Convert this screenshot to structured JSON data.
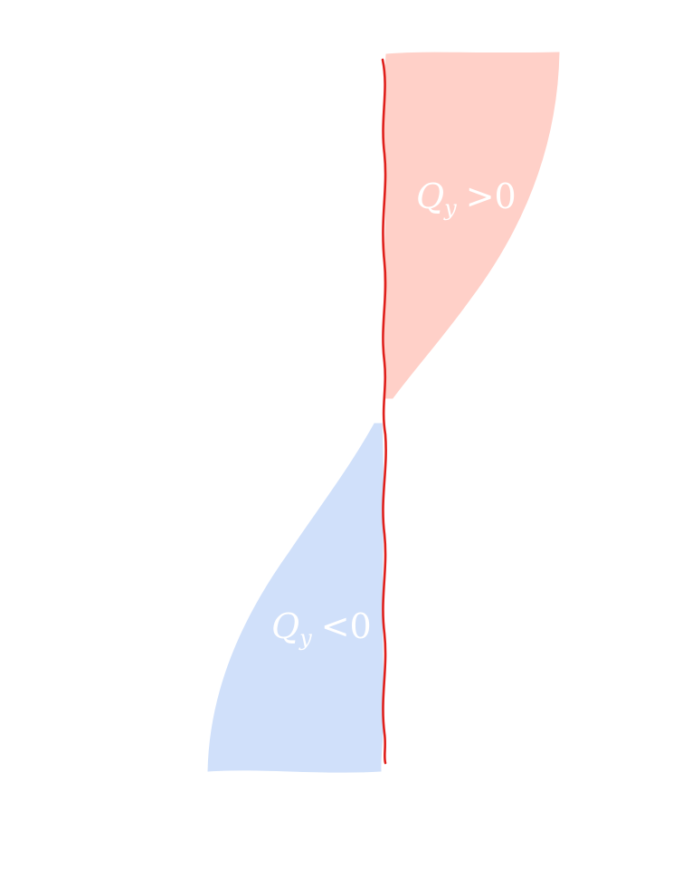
{
  "diagram": {
    "axis_color": "#e0201c",
    "regions": [
      {
        "name": "positive",
        "color": "#ffd0c8",
        "label_var": "Q",
        "label_sub": "y",
        "label_rel": ">0"
      },
      {
        "name": "negative",
        "color": "#d0e0fa",
        "label_var": "Q",
        "label_sub": "y",
        "label_rel": "<0"
      }
    ]
  }
}
